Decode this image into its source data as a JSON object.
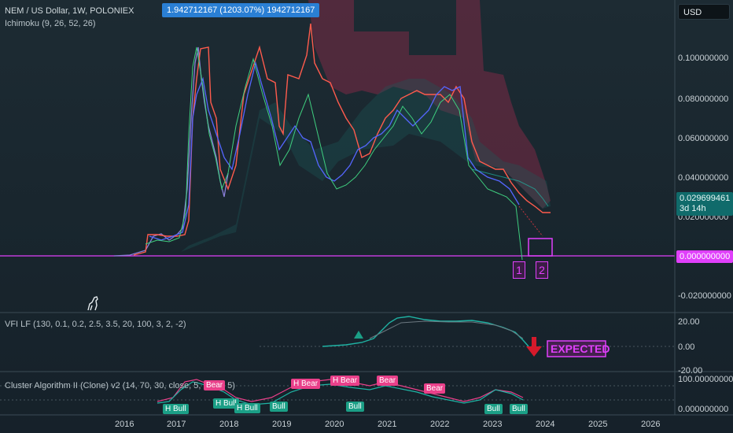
{
  "header": {
    "title": "NEM / US Dollar, 1W, POLONIEX",
    "indicator": "Ichimoku (9, 26, 52, 26)",
    "crosshair_readout": "1.942712167 (1203.07%) 1942712167",
    "currency": "USD"
  },
  "price_axis": {
    "ticks": [
      "0.100000000",
      "0.080000000",
      "0.060000000",
      "0.040000000",
      "0.020000000",
      "-0.020000000"
    ],
    "last_price": "0.029699461",
    "countdown": "3d 14h",
    "line_value": "0.000000000"
  },
  "annotations": {
    "box1": "1",
    "box2": "2",
    "expected": "EXPECTED"
  },
  "vfi_pane": {
    "title": "VFI LF (130, 0.1, 0.2, 2.5, 3.5, 20, 100, 3, 2, -2)",
    "ticks": [
      "20.00",
      "0.00",
      "-20.00"
    ]
  },
  "cluster_pane": {
    "title": "Cluster Algorithm II (Clone) v2 (14, 70, 30, close, 5, 5, 60, 5)",
    "ticks": [
      "100.000000000",
      "0.000000000"
    ],
    "signals": [
      "H Bull",
      "Bear",
      "H Bull",
      "H Bull",
      "Bull",
      "H Bear",
      "H Bear",
      "Bear",
      "Bear",
      "Bull",
      "Bull",
      "Bull"
    ]
  },
  "time_axis": [
    "2016",
    "2017",
    "2018",
    "2019",
    "2020",
    "2021",
    "2022",
    "2023",
    "2024",
    "2025",
    "2026"
  ],
  "colors": {
    "bg": "#1b2730",
    "magenta": "#e040fb",
    "cloud": "#8e2d4d",
    "red_line": "#ff5b4d",
    "blue_line": "#5566ff",
    "teal": "#2aa198",
    "arrow_red": "#d51a2b"
  }
}
